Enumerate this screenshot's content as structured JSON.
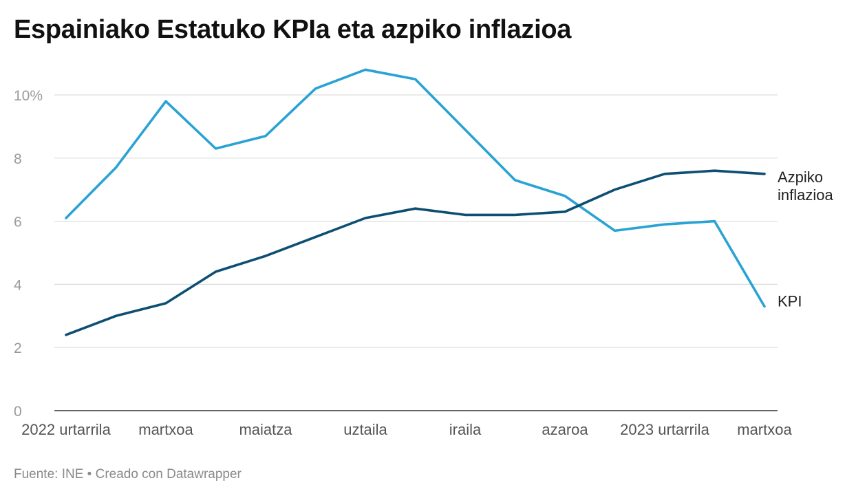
{
  "title": "Espainiako Estatuko KPIa eta azpiko inflazioa",
  "footer": "Fuente: INE • Creado con Datawrapper",
  "chart_data": {
    "type": "line",
    "title": "Espainiako Estatuko KPIa eta azpiko inflazioa",
    "xlabel": "",
    "ylabel": "",
    "x_ticks": [
      "2022 urtarrila",
      "martxoa",
      "maiatza",
      "uztaila",
      "iraila",
      "azaroa",
      "2023 urtarrila",
      "martxoa"
    ],
    "y_ticks": [
      "0",
      "2",
      "4",
      "6",
      "8",
      "10%"
    ],
    "ylim": [
      0,
      10.8
    ],
    "grid": true,
    "legend": "direct labels at line ends",
    "series": [
      {
        "name": "KPI",
        "color": "#29a3d4",
        "values": [
          6.1,
          7.7,
          9.8,
          8.3,
          8.7,
          10.2,
          10.8,
          10.5,
          8.9,
          7.3,
          6.8,
          5.7,
          5.9,
          6.0,
          3.3
        ]
      },
      {
        "name": "Azpiko inflazioa",
        "label_lines": [
          "Azpiko",
          "inflazioa"
        ],
        "color": "#0d4f73",
        "values": [
          2.4,
          3.0,
          3.4,
          4.4,
          4.9,
          5.5,
          6.1,
          6.4,
          6.2,
          6.2,
          6.3,
          7.0,
          7.5,
          7.6,
          7.5
        ]
      }
    ]
  }
}
